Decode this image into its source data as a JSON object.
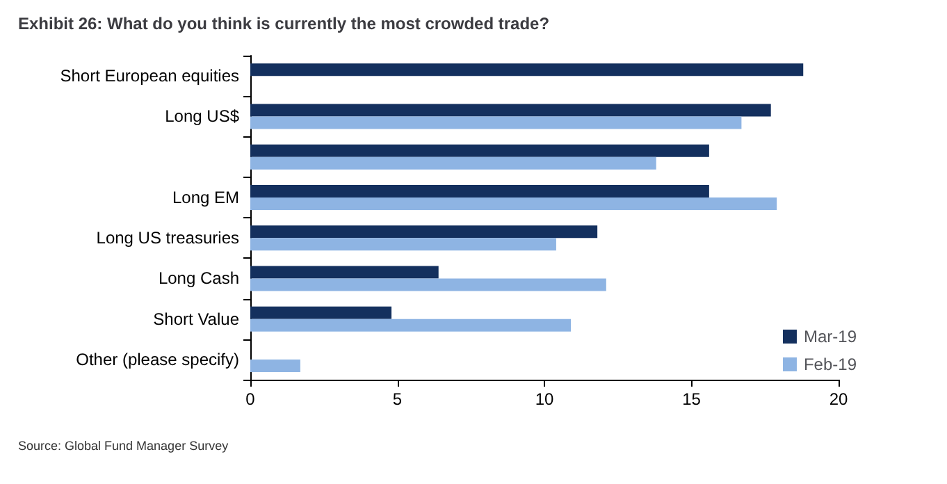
{
  "chart_data": {
    "type": "bar",
    "orientation": "horizontal",
    "title": "Exhibit 26: What do you think is currently the most crowded trade?",
    "categories": [
      "Short European equities",
      "Long US$",
      null,
      "Long EM",
      "Long US treasuries",
      "Long Cash",
      "Short Value",
      "Other (please specify)"
    ],
    "series": [
      {
        "name": "Mar-19",
        "color": "#14305e",
        "values": [
          18.8,
          17.7,
          15.6,
          15.6,
          11.8,
          6.4,
          4.8,
          null
        ]
      },
      {
        "name": "Feb-19",
        "color": "#8eb4e3",
        "values": [
          null,
          16.7,
          13.8,
          17.9,
          10.4,
          12.1,
          10.9,
          1.7
        ]
      }
    ],
    "xlim": [
      0,
      20
    ],
    "xticks": [
      0,
      5,
      10,
      15,
      20
    ],
    "grid": false,
    "legend": "bottom right",
    "annotations": [
      "Source: Global Fund Manager Survey"
    ]
  }
}
